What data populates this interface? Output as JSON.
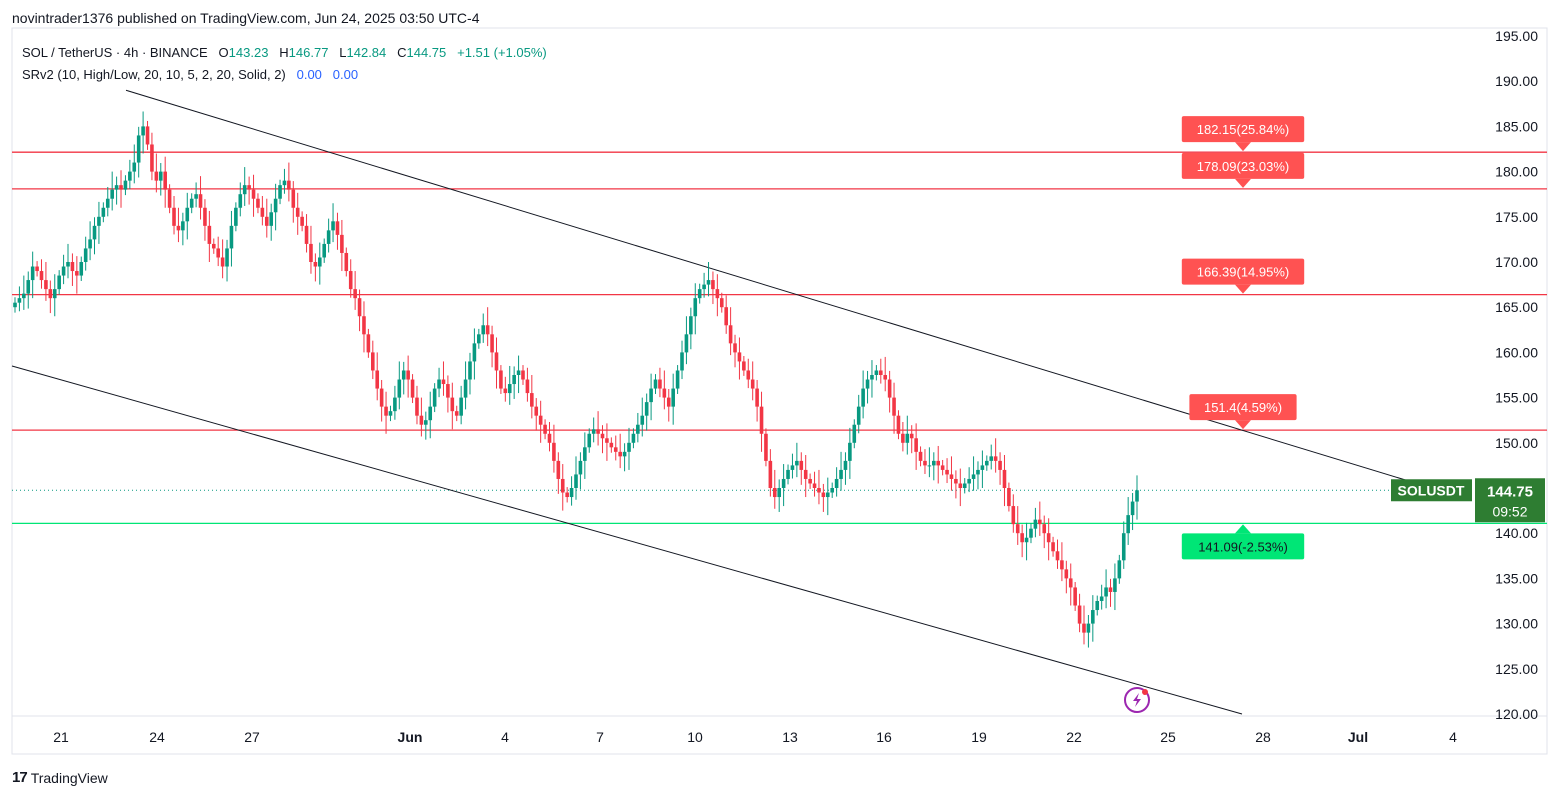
{
  "publisher_line": "novintrader1376 published on TradingView.com, Jun 24, 2025 03:50 UTC-4",
  "legend": {
    "symbol": "SOL / TetherUS · 4h · BINANCE",
    "open_label": "O",
    "open": "143.23",
    "high_label": "H",
    "high": "146.77",
    "low_label": "L",
    "low": "142.84",
    "close_label": "C",
    "close": "144.75",
    "change": "+1.51 (+1.05%)"
  },
  "indicator": {
    "text": "SRv2 (10, High/Low, 20, 10, 5, 2, 20, Solid, 2)",
    "value1": "0.00",
    "value2": "0.00"
  },
  "footer": {
    "logo": "17",
    "brand": "TradingView"
  },
  "colors": {
    "up": "#089981",
    "down": "#f23645",
    "resistance": "#f23645",
    "support": "#00e676",
    "label_red": "#ff5252",
    "label_green": "#00e676",
    "price_tag": "#2e7d32"
  },
  "chart_data": {
    "type": "candlestick",
    "y_axis": {
      "ticks": [
        "195.00",
        "190.00",
        "185.00",
        "180.00",
        "175.00",
        "170.00",
        "165.00",
        "160.00",
        "155.00",
        "150.00",
        "145.00",
        "140.00",
        "135.00",
        "130.00",
        "125.00",
        "120.00"
      ],
      "range": [
        120,
        195
      ]
    },
    "x_axis": {
      "ticks": [
        "21",
        "24",
        "27",
        "Jun",
        "4",
        "7",
        "10",
        "13",
        "16",
        "19",
        "22",
        "25",
        "28",
        "Jul",
        "4"
      ]
    },
    "levels": [
      {
        "price": 182.15,
        "label": "182.15(25.84%)",
        "kind": "resistance"
      },
      {
        "price": 178.09,
        "label": "178.09(23.03%)",
        "kind": "resistance"
      },
      {
        "price": 166.39,
        "label": "166.39(14.95%)",
        "kind": "resistance"
      },
      {
        "price": 151.4,
        "label": "151.4(4.59%)",
        "kind": "resistance"
      },
      {
        "price": 141.09,
        "label": "141.09(-2.53%)",
        "kind": "support"
      }
    ],
    "channel": {
      "upper": [
        [
          "May 22",
          189
        ],
        [
          "Jun 26",
          145.5
        ]
      ],
      "lower": [
        [
          "May 19",
          158.5
        ],
        [
          "Jun 26",
          120
        ]
      ]
    },
    "last_price": {
      "symbol": "SOLUSDT",
      "price": "144.75",
      "countdown": "09:52",
      "value": 144.75
    },
    "closes": [
      165.5,
      166,
      166.5,
      168,
      169.5,
      169,
      168,
      167,
      166,
      167,
      168.5,
      169.5,
      170,
      169,
      168.5,
      170,
      171.5,
      172.5,
      174,
      175,
      176,
      177,
      178,
      178.5,
      178,
      179,
      180,
      181,
      184,
      185,
      183,
      180,
      179,
      180,
      178,
      176,
      174,
      173.5,
      174.5,
      176,
      177,
      177.5,
      176,
      174,
      172,
      171.5,
      170.5,
      169.5,
      171.5,
      174,
      176,
      177.5,
      178.5,
      178,
      177,
      176,
      175,
      174,
      175.5,
      177,
      178.5,
      179,
      178,
      176,
      175,
      174,
      172,
      170,
      169.5,
      170.5,
      172,
      173.5,
      174.5,
      173,
      171,
      169,
      167,
      166,
      164,
      162,
      160,
      158,
      156,
      154,
      153,
      153.5,
      155,
      157,
      158,
      157,
      155,
      153,
      152,
      152.5,
      154,
      156,
      157,
      156.5,
      155,
      153.5,
      153,
      155,
      157,
      159,
      161,
      162,
      163,
      162,
      160,
      158,
      156,
      155.5,
      156.5,
      157.5,
      158,
      157,
      155.5,
      154,
      153,
      152,
      151,
      150,
      148,
      146,
      144.5,
      144,
      145,
      146.5,
      148,
      149.5,
      151,
      151.5,
      151,
      150.5,
      150,
      149.5,
      149,
      148.5,
      149,
      150,
      151,
      152,
      153,
      154.5,
      156,
      157,
      156,
      155,
      154,
      156,
      158,
      160,
      162,
      164,
      166,
      167,
      167.5,
      168,
      167,
      166,
      165,
      163,
      161,
      160,
      159,
      158,
      157,
      156,
      154,
      151,
      148,
      145,
      144,
      145,
      146,
      147,
      147.5,
      148,
      147,
      146,
      145.5,
      145,
      144.5,
      144,
      144.5,
      145,
      146,
      147,
      148,
      150,
      152,
      154,
      156,
      157,
      157.5,
      158,
      157.5,
      157,
      155,
      153,
      151,
      150,
      151,
      150.5,
      149,
      148,
      147.5,
      147.5,
      148,
      147.5,
      147,
      146.5,
      146,
      145.5,
      145,
      145.5,
      146,
      146.5,
      147,
      147.5,
      148,
      148.5,
      148,
      147,
      145,
      143,
      141,
      140,
      139,
      139.5,
      140.5,
      141.5,
      141,
      140,
      139,
      138,
      137,
      136,
      135,
      134,
      132,
      130,
      129,
      130,
      131.5,
      132.5,
      133,
      134,
      133.5,
      135,
      137,
      140,
      142,
      143.5,
      144.75
    ]
  }
}
